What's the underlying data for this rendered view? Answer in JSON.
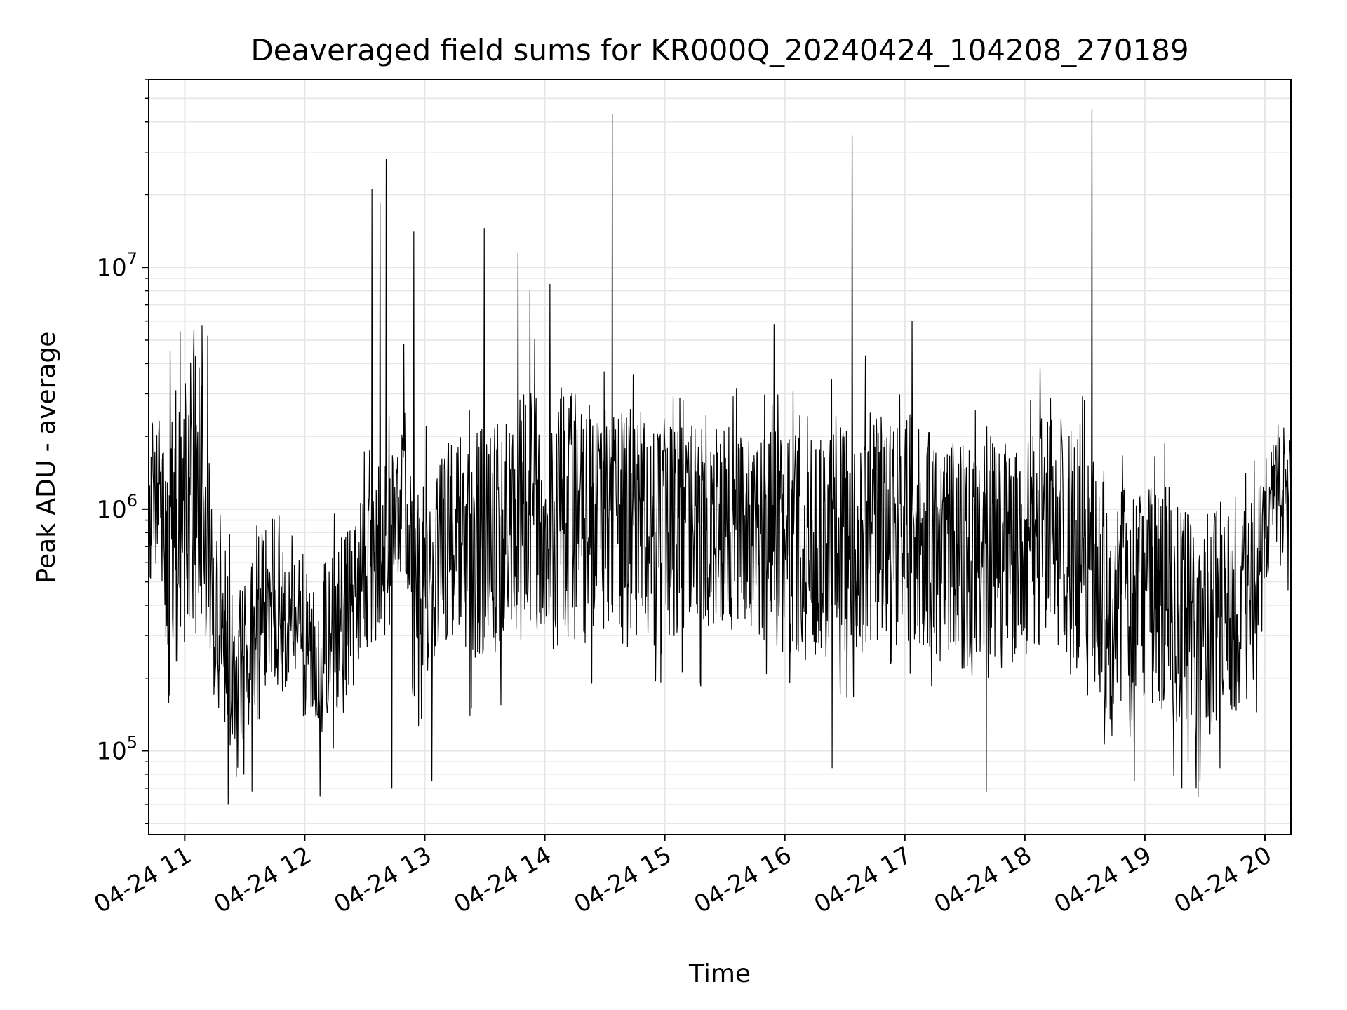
{
  "chart_data": {
    "type": "line",
    "title": "Deaveraged field sums for KR000Q_20240424_104208_270189",
    "xlabel": "Time",
    "ylabel": "Peak ADU - average",
    "yscale": "log",
    "xlim": [
      "2024-04-24 10:42",
      "2024-04-24 20:13"
    ],
    "ylim": [
      45000,
      60000000
    ],
    "grid": true,
    "line_color": "#000000",
    "grid_color": "#e6e6e6",
    "x_ticks": [
      {
        "x": "2024-04-24 11:00",
        "label": "04-24 11"
      },
      {
        "x": "2024-04-24 12:00",
        "label": "04-24 12"
      },
      {
        "x": "2024-04-24 13:00",
        "label": "04-24 13"
      },
      {
        "x": "2024-04-24 14:00",
        "label": "04-24 14"
      },
      {
        "x": "2024-04-24 15:00",
        "label": "04-24 15"
      },
      {
        "x": "2024-04-24 16:00",
        "label": "04-24 16"
      },
      {
        "x": "2024-04-24 17:00",
        "label": "04-24 17"
      },
      {
        "x": "2024-04-24 18:00",
        "label": "04-24 18"
      },
      {
        "x": "2024-04-24 19:00",
        "label": "04-24 19"
      },
      {
        "x": "2024-04-24 20:00",
        "label": "04-24 20"
      }
    ],
    "y_ticks": [
      {
        "value": 100000,
        "base": "10",
        "exp": "5"
      },
      {
        "value": 1000000,
        "base": "10",
        "exp": "6"
      },
      {
        "value": 10000000,
        "base": "10",
        "exp": "7"
      }
    ],
    "series": [
      {
        "x": [
          "2024-04-24 10:42",
          "2024-04-24 10:45",
          "2024-04-24 10:50",
          "2024-04-24 10:55",
          "2024-04-24 11:00",
          "2024-04-24 11:05",
          "2024-04-24 11:10",
          "2024-04-24 11:15",
          "2024-04-24 11:20",
          "2024-04-24 11:25",
          "2024-04-24 11:30",
          "2024-04-24 11:35",
          "2024-04-24 11:40",
          "2024-04-24 11:45",
          "2024-04-24 11:50",
          "2024-04-24 11:55",
          "2024-04-24 12:00",
          "2024-04-24 12:05",
          "2024-04-24 12:10",
          "2024-04-24 12:15",
          "2024-04-24 12:20",
          "2024-04-24 12:25",
          "2024-04-24 12:30",
          "2024-04-24 12:35",
          "2024-04-24 12:40",
          "2024-04-24 12:45",
          "2024-04-24 12:50",
          "2024-04-24 12:55",
          "2024-04-24 13:00",
          "2024-04-24 13:05",
          "2024-04-24 13:10",
          "2024-04-24 13:15",
          "2024-04-24 13:20",
          "2024-04-24 13:25",
          "2024-04-24 13:30",
          "2024-04-24 13:35",
          "2024-04-24 13:40",
          "2024-04-24 13:45",
          "2024-04-24 13:50",
          "2024-04-24 13:55",
          "2024-04-24 14:00",
          "2024-04-24 14:05",
          "2024-04-24 14:10",
          "2024-04-24 14:15",
          "2024-04-24 14:20",
          "2024-04-24 14:25",
          "2024-04-24 14:30",
          "2024-04-24 14:35",
          "2024-04-24 14:40",
          "2024-04-24 14:45",
          "2024-04-24 14:50",
          "2024-04-24 14:55",
          "2024-04-24 15:00",
          "2024-04-24 15:05",
          "2024-04-24 15:10",
          "2024-04-24 15:15",
          "2024-04-24 15:20",
          "2024-04-24 15:25",
          "2024-04-24 15:30",
          "2024-04-24 15:35",
          "2024-04-24 15:40",
          "2024-04-24 15:45",
          "2024-04-24 15:50",
          "2024-04-24 15:55",
          "2024-04-24 16:00",
          "2024-04-24 16:05",
          "2024-04-24 16:10",
          "2024-04-24 16:15",
          "2024-04-24 16:20",
          "2024-04-24 16:25",
          "2024-04-24 16:30",
          "2024-04-24 16:35",
          "2024-04-24 16:40",
          "2024-04-24 16:45",
          "2024-04-24 16:50",
          "2024-04-24 16:55",
          "2024-04-24 17:00",
          "2024-04-24 17:05",
          "2024-04-24 17:10",
          "2024-04-24 17:15",
          "2024-04-24 17:20",
          "2024-04-24 17:25",
          "2024-04-24 17:30",
          "2024-04-24 17:35",
          "2024-04-24 17:40",
          "2024-04-24 17:45",
          "2024-04-24 17:50",
          "2024-04-24 17:55",
          "2024-04-24 18:00",
          "2024-04-24 18:05",
          "2024-04-24 18:10",
          "2024-04-24 18:15",
          "2024-04-24 18:20",
          "2024-04-24 18:25",
          "2024-04-24 18:30",
          "2024-04-24 18:35",
          "2024-04-24 18:40",
          "2024-04-24 18:45",
          "2024-04-24 18:50",
          "2024-04-24 18:55",
          "2024-04-24 19:00",
          "2024-04-24 19:05",
          "2024-04-24 19:10",
          "2024-04-24 19:15",
          "2024-04-24 19:20",
          "2024-04-24 19:25",
          "2024-04-24 19:30",
          "2024-04-24 19:35",
          "2024-04-24 19:40",
          "2024-04-24 19:45",
          "2024-04-24 19:50",
          "2024-04-24 19:55",
          "2024-04-24 20:00",
          "2024-04-24 20:05",
          "2024-04-24 20:10",
          "2024-04-24 20:13"
        ],
        "y_lo": [
          450000,
          600000,
          300000,
          200000,
          280000,
          350000,
          250000,
          150000,
          120000,
          110000,
          110000,
          150000,
          180000,
          200000,
          160000,
          220000,
          170000,
          140000,
          120000,
          140000,
          180000,
          220000,
          260000,
          280000,
          230000,
          500000,
          560000,
          110000,
          140000,
          230000,
          280000,
          300000,
          250000,
          230000,
          200000,
          250000,
          270000,
          300000,
          280000,
          320000,
          280000,
          260000,
          270000,
          280000,
          260000,
          300000,
          320000,
          270000,
          250000,
          300000,
          310000,
          240000,
          290000,
          260000,
          250000,
          270000,
          300000,
          320000,
          330000,
          350000,
          300000,
          260000,
          240000,
          230000,
          260000,
          250000,
          250000,
          230000,
          240000,
          260000,
          230000,
          250000,
          240000,
          280000,
          270000,
          250000,
          270000,
          260000,
          240000,
          230000,
          220000,
          200000,
          190000,
          180000,
          250000,
          220000,
          210000,
          230000,
          240000,
          250000,
          280000,
          300000,
          270000,
          220000,
          200000,
          170000,
          140000,
          130000,
          150000,
          160000,
          160000,
          150000,
          140000,
          130000,
          120000,
          100000,
          110000,
          120000,
          120000,
          140000,
          160000,
          180000,
          500000,
          600000,
          650000,
          620000
        ],
        "y_hi": [
          1800000,
          2600000,
          3200000,
          2500000,
          3800000,
          4500000,
          2800000,
          900000,
          600000,
          500000,
          500000,
          700000,
          900000,
          800000,
          700000,
          700000,
          600000,
          500000,
          600000,
          700000,
          800000,
          900000,
          1200000,
          1400000,
          1500000,
          1900000,
          2200000,
          1100000,
          1300000,
          1500000,
          1800000,
          2000000,
          2200000,
          2400000,
          2500000,
          2200000,
          2500000,
          2800000,
          3000000,
          3300000,
          3400000,
          3000000,
          2900000,
          3100000,
          2900000,
          2800000,
          2700000,
          2800000,
          2800000,
          2600000,
          2500000,
          2300000,
          2400000,
          2300000,
          2200000,
          2300000,
          2400000,
          2500000,
          2300000,
          2200000,
          2100000,
          2000000,
          2200000,
          2100000,
          2300000,
          2400000,
          2500000,
          2200000,
          2000000,
          2100000,
          2300000,
          2400000,
          2500000,
          2500000,
          2400000,
          2300000,
          2600000,
          2800000,
          2400000,
          2200000,
          2000000,
          1900000,
          1800000,
          1700000,
          1900000,
          2100000,
          2000000,
          1800000,
          1900000,
          2200000,
          2500000,
          2600000,
          2300000,
          2000000,
          1800000,
          1600000,
          1400000,
          1300000,
          1300000,
          1400000,
          1300000,
          1200000,
          1300000,
          1200000,
          1100000,
          1100000,
          1100000,
          1200000,
          1300000,
          1200000,
          1100000,
          1300000,
          1900000,
          2200000,
          2300000,
          2200000
        ]
      }
    ],
    "spikes": [
      {
        "x": "2024-04-24 10:53",
        "y": 4500000
      },
      {
        "x": "2024-04-24 11:05",
        "y": 5500000
      },
      {
        "x": "2024-04-24 11:12",
        "y": 5200000
      },
      {
        "x": "2024-04-24 12:34",
        "y": 21000000
      },
      {
        "x": "2024-04-24 12:38",
        "y": 18500000
      },
      {
        "x": "2024-04-24 12:41",
        "y": 28000000
      },
      {
        "x": "2024-04-24 12:50",
        "y": 4800000
      },
      {
        "x": "2024-04-24 12:55",
        "y": 14000000
      },
      {
        "x": "2024-04-24 13:30",
        "y": 14500000
      },
      {
        "x": "2024-04-24 13:47",
        "y": 11500000
      },
      {
        "x": "2024-04-24 13:53",
        "y": 8000000
      },
      {
        "x": "2024-04-24 14:03",
        "y": 8500000
      },
      {
        "x": "2024-04-24 14:34",
        "y": 43000000
      },
      {
        "x": "2024-04-24 15:55",
        "y": 5800000
      },
      {
        "x": "2024-04-24 16:34",
        "y": 35000000
      },
      {
        "x": "2024-04-24 17:04",
        "y": 6000000
      },
      {
        "x": "2024-04-24 18:34",
        "y": 45000000
      }
    ],
    "dips": [
      {
        "x": "2024-04-24 11:22",
        "y": 60000
      },
      {
        "x": "2024-04-24 11:30",
        "y": 80000
      },
      {
        "x": "2024-04-24 11:34",
        "y": 68000
      },
      {
        "x": "2024-04-24 12:08",
        "y": 65000
      },
      {
        "x": "2024-04-24 12:44",
        "y": 70000
      },
      {
        "x": "2024-04-24 13:04",
        "y": 75000
      },
      {
        "x": "2024-04-24 16:24",
        "y": 85000
      },
      {
        "x": "2024-04-24 17:41",
        "y": 68000
      },
      {
        "x": "2024-04-24 18:55",
        "y": 75000
      },
      {
        "x": "2024-04-24 19:19",
        "y": 70000
      },
      {
        "x": "2024-04-24 19:22",
        "y": 90000
      },
      {
        "x": "2024-04-24 19:26",
        "y": 70000
      },
      {
        "x": "2024-04-24 19:28",
        "y": 75000
      },
      {
        "x": "2024-04-24 19:38",
        "y": 85000
      }
    ]
  }
}
